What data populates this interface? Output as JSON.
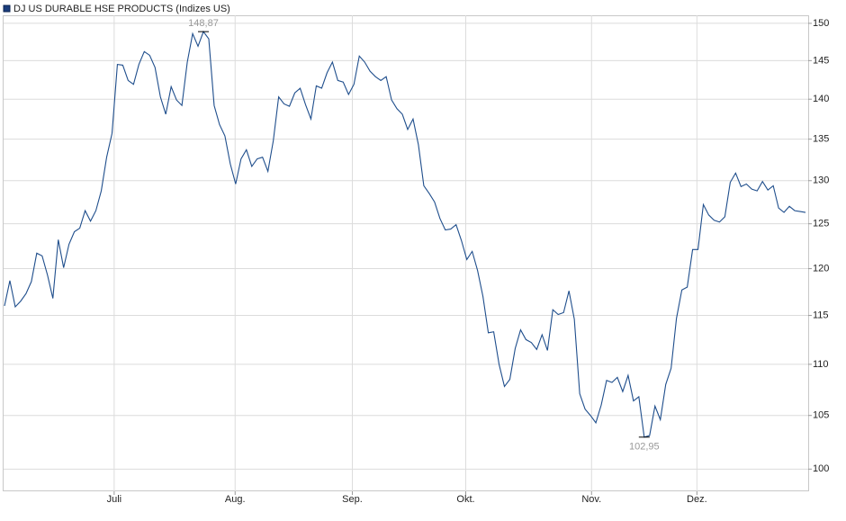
{
  "chart_data": {
    "type": "line",
    "title": "DJ US DURABLE HSE PRODUCTS (Indizes US)",
    "log_scale": true,
    "grid": true,
    "xlim": [
      0,
      149
    ],
    "xticks": [
      {
        "value": 20.4,
        "label": "Juli"
      },
      {
        "value": 42.9,
        "label": "Aug."
      },
      {
        "value": 64.7,
        "label": "Sep."
      },
      {
        "value": 85.8,
        "label": "Okt."
      },
      {
        "value": 109.2,
        "label": "Nov."
      },
      {
        "value": 128.8,
        "label": "Dez."
      }
    ],
    "ylim": [
      98,
      151.1
    ],
    "yticks": [
      100,
      105,
      110,
      115,
      120,
      125,
      130,
      135,
      140,
      145,
      150
    ],
    "series": [
      {
        "name": "DJ US DURABLE HSE PRODUCTS (Indizes US)",
        "color": "#1f4e8c",
        "values": [
          116.0,
          118.7,
          115.9,
          116.5,
          117.3,
          118.6,
          121.7,
          121.4,
          119.3,
          116.8,
          123.2,
          120.1,
          122.7,
          124.1,
          124.5,
          126.5,
          125.3,
          126.5,
          128.8,
          132.8,
          135.7,
          144.5,
          144.4,
          142.4,
          141.9,
          144.5,
          146.2,
          145.7,
          144.1,
          140.3,
          138.1,
          141.6,
          139.9,
          139.2,
          144.8,
          148.6,
          146.9,
          148.87,
          147.9,
          139.2,
          136.8,
          135.4,
          132.0,
          129.6,
          132.6,
          133.7,
          131.7,
          132.6,
          132.8,
          131.1,
          134.8,
          140.3,
          139.4,
          139.1,
          140.8,
          141.4,
          139.3,
          137.5,
          141.7,
          141.4,
          143.4,
          144.8,
          142.4,
          142.2,
          140.6,
          141.9,
          145.6,
          144.8,
          143.6,
          142.9,
          142.4,
          142.9,
          139.9,
          138.8,
          138.1,
          136.2,
          137.5,
          134.3,
          129.4,
          128.5,
          127.5,
          125.6,
          124.3,
          124.4,
          124.9,
          123.1,
          121.0,
          121.9,
          119.8,
          117.0,
          113.2,
          113.3,
          110.0,
          107.8,
          108.5,
          111.6,
          113.5,
          112.5,
          112.2,
          111.5,
          113.0,
          111.4,
          115.6,
          115.1,
          115.3,
          117.6,
          114.6,
          107.1,
          105.6,
          105.0,
          104.3,
          106.0,
          108.4,
          108.2,
          108.7,
          107.3,
          108.9,
          106.4,
          106.8,
          102.95,
          103.1,
          105.9,
          104.6,
          108.0,
          109.6,
          114.7,
          117.7,
          118.0,
          122.1,
          122.1,
          127.2,
          126.0,
          125.4,
          125.2,
          125.8,
          129.8,
          130.9,
          129.3,
          129.6,
          129.0,
          128.8,
          129.9,
          128.9,
          129.4,
          126.8,
          126.3,
          127.0,
          126.5,
          126.4,
          126.3
        ]
      }
    ],
    "extremes": [
      {
        "x": 37,
        "value": 148.87,
        "label": "148,87",
        "side": "top"
      },
      {
        "x": 119,
        "value": 102.95,
        "label": "102,95",
        "side": "bottom"
      }
    ]
  }
}
